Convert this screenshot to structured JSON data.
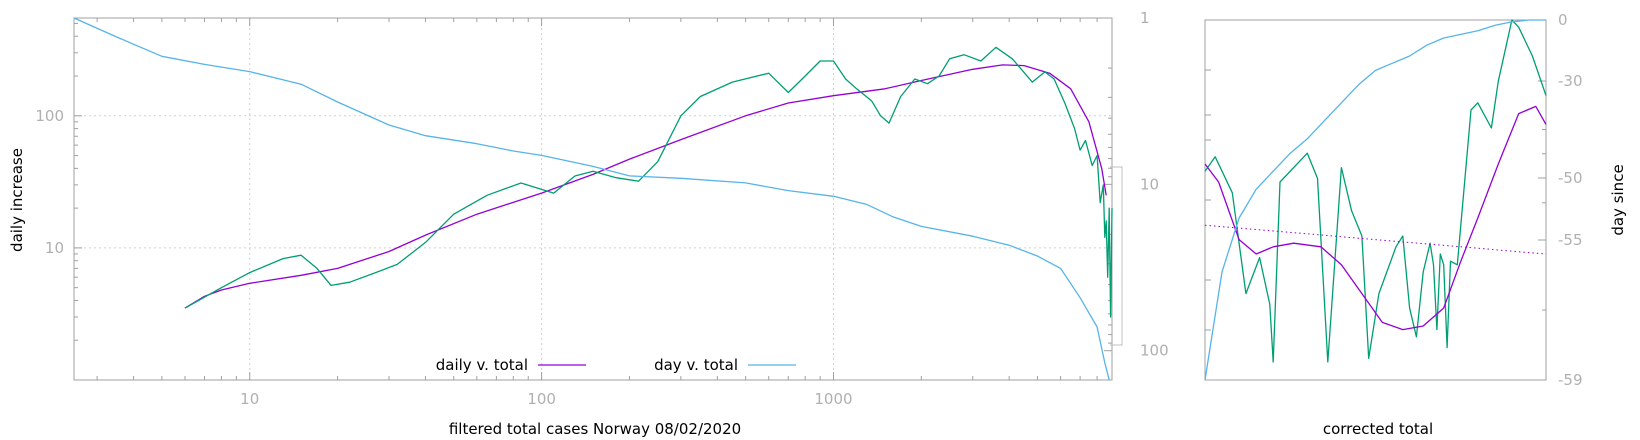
{
  "chart_data": [
    {
      "type": "line",
      "xlabel": "filtered total cases Norway 08/02/2020",
      "ylabel": "daily increase",
      "y2label": "",
      "xscale": "log",
      "yscale": "log",
      "y2scale": "log-reversed",
      "xlim": [
        2.5,
        9000
      ],
      "ylim": [
        1,
        550
      ],
      "y2lim": [
        1,
        150
      ],
      "grid": true,
      "legend_position": "bottom-center",
      "xticks": [
        10,
        100,
        1000
      ],
      "xtick_labels": [
        "10",
        "100",
        "1000"
      ],
      "yticks": [
        10,
        100
      ],
      "ytick_labels": [
        "10",
        "100"
      ],
      "y2ticks": [
        1,
        10,
        100
      ],
      "y2tick_labels": [
        "1",
        "10",
        "100"
      ],
      "series": [
        {
          "name": "daily v. total",
          "color": "#9400d3",
          "axis": "left",
          "points": [
            [
              6,
              3.5
            ],
            [
              7,
              4.3
            ],
            [
              8,
              4.8
            ],
            [
              10,
              5.4
            ],
            [
              15,
              6.2
            ],
            [
              20,
              7.0
            ],
            [
              30,
              9.4
            ],
            [
              40,
              12.5
            ],
            [
              60,
              18
            ],
            [
              100,
              26
            ],
            [
              150,
              36
            ],
            [
              200,
              47
            ],
            [
              300,
              66
            ],
            [
              500,
              100
            ],
            [
              700,
              125
            ],
            [
              1000,
              142
            ],
            [
              1500,
              160
            ],
            [
              2000,
              185
            ],
            [
              3000,
              225
            ],
            [
              3800,
              243
            ],
            [
              4500,
              240
            ],
            [
              5500,
              210
            ],
            [
              6500,
              160
            ],
            [
              7500,
              90
            ],
            [
              8300,
              40
            ],
            [
              8600,
              25
            ]
          ]
        },
        {
          "name": "",
          "color": "#009e73",
          "axis": "left",
          "points": [
            [
              6,
              3.5
            ],
            [
              8,
              5
            ],
            [
              10,
              6.5
            ],
            [
              13,
              8.3
            ],
            [
              15,
              8.8
            ],
            [
              17,
              7
            ],
            [
              19,
              5.2
            ],
            [
              22,
              5.5
            ],
            [
              27,
              6.5
            ],
            [
              32,
              7.5
            ],
            [
              40,
              11
            ],
            [
              50,
              18
            ],
            [
              65,
              25
            ],
            [
              85,
              31
            ],
            [
              110,
              26
            ],
            [
              130,
              35
            ],
            [
              150,
              38
            ],
            [
              180,
              34
            ],
            [
              215,
              32
            ],
            [
              250,
              45
            ],
            [
              300,
              100
            ],
            [
              350,
              140
            ],
            [
              450,
              180
            ],
            [
              600,
              210
            ],
            [
              700,
              150
            ],
            [
              800,
              200
            ],
            [
              900,
              260
            ],
            [
              1000,
              260
            ],
            [
              1100,
              190
            ],
            [
              1200,
              160
            ],
            [
              1350,
              130
            ],
            [
              1450,
              100
            ],
            [
              1550,
              88
            ],
            [
              1700,
              140
            ],
            [
              1900,
              190
            ],
            [
              2100,
              175
            ],
            [
              2300,
              200
            ],
            [
              2500,
              270
            ],
            [
              2800,
              290
            ],
            [
              3200,
              260
            ],
            [
              3600,
              330
            ],
            [
              4100,
              270
            ],
            [
              4800,
              180
            ],
            [
              5300,
              215
            ],
            [
              5700,
              190
            ],
            [
              6200,
              125
            ],
            [
              6700,
              80
            ],
            [
              7000,
              55
            ],
            [
              7300,
              65
            ],
            [
              7700,
              42
            ],
            [
              8000,
              50
            ],
            [
              8200,
              22
            ],
            [
              8400,
              30
            ],
            [
              8500,
              12
            ],
            [
              8600,
              16
            ],
            [
              8700,
              6
            ],
            [
              8800,
              20
            ],
            [
              8900,
              3
            ],
            [
              9000,
              20
            ]
          ]
        },
        {
          "name": "day v. total",
          "color": "#56b4e9",
          "axis": "right",
          "points": [
            [
              2.5,
              1
            ],
            [
              3.5,
              1.3
            ],
            [
              5,
              1.7
            ],
            [
              7,
              1.9
            ],
            [
              10,
              2.1
            ],
            [
              15,
              2.5
            ],
            [
              20,
              3.2
            ],
            [
              30,
              4.4
            ],
            [
              40,
              5.1
            ],
            [
              60,
              5.7
            ],
            [
              80,
              6.3
            ],
            [
              100,
              6.7
            ],
            [
              150,
              7.8
            ],
            [
              200,
              8.9
            ],
            [
              300,
              9.2
            ],
            [
              500,
              9.8
            ],
            [
              700,
              10.9
            ],
            [
              1000,
              11.8
            ],
            [
              1300,
              13.2
            ],
            [
              1600,
              15.7
            ],
            [
              2000,
              17.9
            ],
            [
              3000,
              20.5
            ],
            [
              4000,
              23.2
            ],
            [
              5000,
              27
            ],
            [
              6000,
              32
            ],
            [
              7000,
              48
            ],
            [
              8000,
              72
            ],
            [
              8500,
              118
            ],
            [
              8800,
              150
            ]
          ]
        }
      ]
    },
    {
      "type": "line",
      "xlabel": "corrected total",
      "ylabel": "",
      "y2label": "day since",
      "y2lim": [
        -59,
        0
      ],
      "y2ticks": [
        0,
        -30,
        -50,
        -55,
        -59
      ],
      "y2tick_labels": [
        "0",
        "-30",
        "-50",
        "-55",
        "-59"
      ],
      "grid": false,
      "series": [
        {
          "name": "",
          "color": "#009e73",
          "points": [
            [
              0,
              0.58
            ],
            [
              0.03,
              0.62
            ],
            [
              0.08,
              0.52
            ],
            [
              0.12,
              0.24
            ],
            [
              0.16,
              0.34
            ],
            [
              0.19,
              0.21
            ],
            [
              0.2,
              0.05
            ],
            [
              0.22,
              0.55
            ],
            [
              0.3,
              0.63
            ],
            [
              0.33,
              0.56
            ],
            [
              0.36,
              0.05
            ],
            [
              0.4,
              0.59
            ],
            [
              0.43,
              0.47
            ],
            [
              0.46,
              0.4
            ],
            [
              0.48,
              0.06
            ],
            [
              0.51,
              0.24
            ],
            [
              0.56,
              0.37
            ],
            [
              0.58,
              0.4
            ],
            [
              0.6,
              0.2
            ],
            [
              0.62,
              0.12
            ],
            [
              0.64,
              0.3
            ],
            [
              0.66,
              0.38
            ],
            [
              0.67,
              0.32
            ],
            [
              0.68,
              0.14
            ],
            [
              0.69,
              0.35
            ],
            [
              0.7,
              0.32
            ],
            [
              0.71,
              0.09
            ],
            [
              0.72,
              0.33
            ],
            [
              0.74,
              0.32
            ],
            [
              0.78,
              0.75
            ],
            [
              0.8,
              0.77
            ],
            [
              0.84,
              0.7
            ],
            [
              0.86,
              0.83
            ],
            [
              0.9,
              1.0
            ],
            [
              0.92,
              0.98
            ],
            [
              0.96,
              0.9
            ],
            [
              1.0,
              0.79
            ]
          ]
        },
        {
          "name": "",
          "color": "#9400d3",
          "points": [
            [
              0,
              0.6
            ],
            [
              0.04,
              0.55
            ],
            [
              0.1,
              0.39
            ],
            [
              0.15,
              0.35
            ],
            [
              0.2,
              0.37
            ],
            [
              0.26,
              0.38
            ],
            [
              0.34,
              0.37
            ],
            [
              0.4,
              0.32
            ],
            [
              0.46,
              0.24
            ],
            [
              0.52,
              0.16
            ],
            [
              0.58,
              0.14
            ],
            [
              0.64,
              0.15
            ],
            [
              0.7,
              0.2
            ],
            [
              0.75,
              0.33
            ],
            [
              0.8,
              0.45
            ],
            [
              0.86,
              0.6
            ],
            [
              0.92,
              0.74
            ],
            [
              0.97,
              0.76
            ],
            [
              1.0,
              0.71
            ]
          ]
        },
        {
          "name": "",
          "color": "#9400d3",
          "dashed": true,
          "points": [
            [
              0,
              0.43
            ],
            [
              1.0,
              0.35
            ]
          ]
        },
        {
          "name": "",
          "color": "#56b4e9",
          "points": [
            [
              0,
              0.0
            ],
            [
              0.05,
              0.3
            ],
            [
              0.1,
              0.45
            ],
            [
              0.15,
              0.53
            ],
            [
              0.2,
              0.58
            ],
            [
              0.25,
              0.63
            ],
            [
              0.3,
              0.67
            ],
            [
              0.35,
              0.72
            ],
            [
              0.4,
              0.77
            ],
            [
              0.45,
              0.82
            ],
            [
              0.5,
              0.86
            ],
            [
              0.55,
              0.88
            ],
            [
              0.6,
              0.9
            ],
            [
              0.65,
              0.93
            ],
            [
              0.7,
              0.95
            ],
            [
              0.75,
              0.96
            ],
            [
              0.8,
              0.97
            ],
            [
              0.85,
              0.985
            ],
            [
              0.9,
              0.995
            ],
            [
              0.95,
              1.0
            ],
            [
              1.0,
              1.0
            ]
          ]
        }
      ]
    }
  ]
}
